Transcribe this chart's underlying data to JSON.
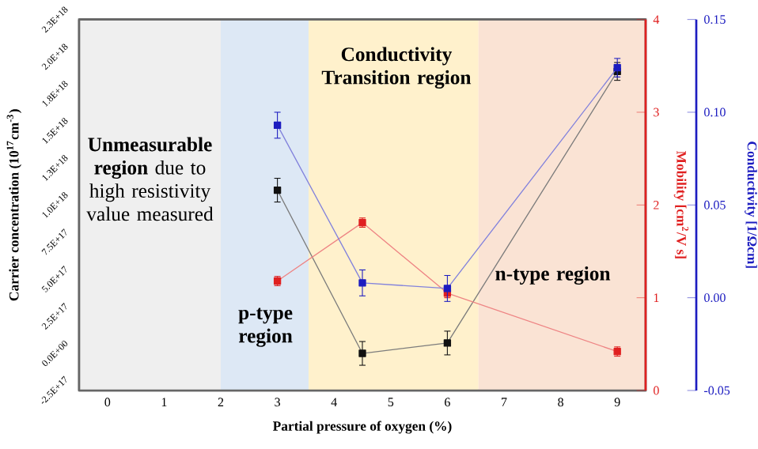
{
  "chart_data": {
    "type": "line",
    "xlabel": "Partial pressure of oxygen (%)",
    "ylabel": "Carrier concentration (10$^{17}$cm$^{-3}$)",
    "y2label": "Mobility [cm$^{2}$/V s]",
    "y3label": "Conductivity [1/Ωcm]",
    "xlim": [
      -0.5,
      9.5
    ],
    "xticks": [
      0,
      1,
      2,
      3,
      4,
      5,
      6,
      7,
      8,
      9
    ],
    "ylim": [
      -2.5e+17,
      2.25e+18
    ],
    "yticks": [
      {
        "value": -2.5e+17,
        "label": "-2.5E+17"
      },
      {
        "value": 0,
        "label": "0.0E+00"
      },
      {
        "value": 2.5e+17,
        "label": "2.5E+17"
      },
      {
        "value": 5e+17,
        "label": "5.0E+17"
      },
      {
        "value": 7.5e+17,
        "label": "7.5E+17"
      },
      {
        "value": 1e+18,
        "label": "1.0E+18"
      },
      {
        "value": 1.25e+18,
        "label": "1.3E+18"
      },
      {
        "value": 1.5e+18,
        "label": "1.5E+18"
      },
      {
        "value": 1.75e+18,
        "label": "1.8E+18"
      },
      {
        "value": 2e+18,
        "label": "2.0E+18"
      },
      {
        "value": 2.25e+18,
        "label": "2.3E+18"
      }
    ],
    "y2lim": [
      0,
      4
    ],
    "y2ticks": [
      0,
      1,
      2,
      3,
      4
    ],
    "y3lim": [
      -0.05,
      0.15
    ],
    "y3ticks": [
      -0.05,
      {
        "value": 0,
        "label": "0.00"
      },
      0.05,
      {
        "value": 0.1,
        "label": "0.10"
      },
      0.15
    ],
    "marker": "square",
    "bands": [
      {
        "axis": "x",
        "from": -0.5,
        "to": 2,
        "label": "**Unmeasurable region** due to high resistivity value measured",
        "color": "#efefef"
      },
      {
        "axis": "x",
        "from": 2,
        "to": 3.55,
        "label": "p-type region",
        "color": "#dde8f5"
      },
      {
        "axis": "x",
        "from": 3.55,
        "to": 6.55,
        "label": "Conductivity Transition region",
        "color": "#fff1cc"
      },
      {
        "axis": "x",
        "from": 6.55,
        "to": 9.5,
        "label": "n-type region",
        "color": "#fae3d4"
      }
    ],
    "x": [
      3,
      4.5,
      6,
      9
    ],
    "series": [
      {
        "color": "#111111",
        "axis": "y",
        "values": [
          1.1e+18,
          0,
          7e+16,
          1.9e+18
        ],
        "errors": [
          8e+16,
          8e+16,
          8e+16,
          6e+16
        ]
      },
      {
        "color": "#e02020",
        "axis": "y2",
        "values": [
          1.18,
          1.81,
          1.05,
          0.42
        ],
        "errors": [
          0.05,
          0.05,
          0.05,
          0.05
        ]
      },
      {
        "color": "#1c1cc0",
        "axis": "y3",
        "values": [
          0.093,
          0.008,
          0.005,
          0.124
        ],
        "errors": [
          0.007,
          0.007,
          0.007,
          0.005
        ]
      }
    ]
  }
}
